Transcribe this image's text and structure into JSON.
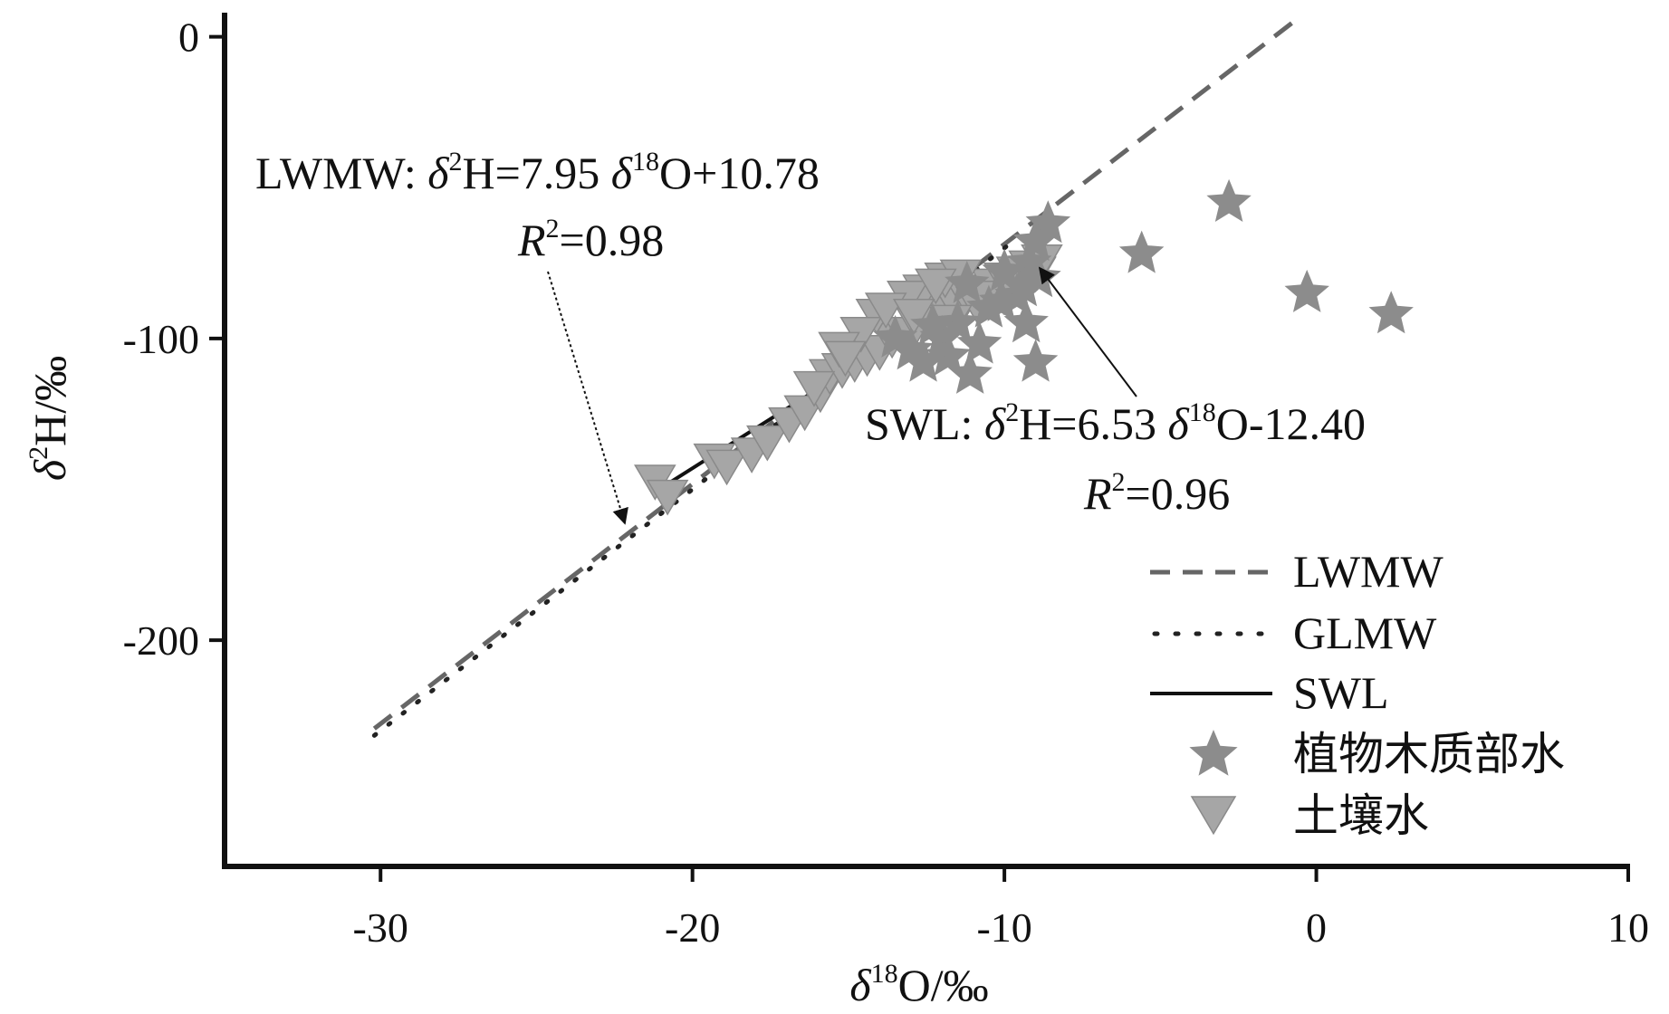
{
  "chart_data": {
    "type": "scatter",
    "title": "",
    "xlabel": {
      "delta": "δ",
      "sup": "18",
      "rest": "O/‰"
    },
    "ylabel": {
      "delta": "δ",
      "sup": "2",
      "rest": "H/‰"
    },
    "xlim": [
      -35,
      10
    ],
    "ylim": [
      -275,
      8
    ],
    "xticks": [
      -30,
      -20,
      -10,
      0,
      10
    ],
    "yticks": [
      0,
      -100,
      -200
    ],
    "xtick_labels": [
      "-30",
      "-20",
      "-10",
      "0",
      "10"
    ],
    "ytick_labels": [
      "0",
      "-100",
      "-200"
    ],
    "grid": false,
    "legend_position": "bottom-right",
    "colors": {
      "lwmw": "#666666",
      "glmw": "#222222",
      "swl": "#111111",
      "stem_water": "#8c8c8c",
      "soil_water": "#a6a6a6"
    },
    "lines": [
      {
        "name": "LWMW",
        "style": "dashed",
        "slope": 7.95,
        "intercept": 10.78,
        "x_range": [
          -30.2,
          -0.6
        ]
      },
      {
        "name": "GLMW",
        "style": "dotted",
        "slope": 8,
        "intercept": 10,
        "x_range": [
          -30.2,
          -9.8
        ]
      },
      {
        "name": "SWL",
        "style": "solid",
        "slope": 6.53,
        "intercept": -12.4,
        "x_range": [
          -21,
          -8.7
        ]
      }
    ],
    "series": [
      {
        "name": "植物木质部水",
        "marker": "star",
        "points": [
          [
            -2.8,
            -55
          ],
          [
            -5.6,
            -72
          ],
          [
            -0.3,
            -85
          ],
          [
            2.4,
            -92
          ],
          [
            -8.6,
            -62
          ],
          [
            -9.0,
            -68
          ],
          [
            -9.2,
            -75
          ],
          [
            -8.9,
            -80
          ],
          [
            -9.6,
            -86
          ],
          [
            -10.1,
            -88
          ],
          [
            -9.3,
            -95
          ],
          [
            -10.5,
            -90
          ],
          [
            -11.2,
            -82
          ],
          [
            -11.5,
            -95
          ],
          [
            -12.0,
            -100
          ],
          [
            -10.8,
            -102
          ],
          [
            -11.8,
            -106
          ],
          [
            -12.3,
            -96
          ],
          [
            -13.0,
            -104
          ],
          [
            -12.6,
            -108
          ],
          [
            -11.1,
            -112
          ],
          [
            -9.0,
            -108
          ],
          [
            -13.5,
            -100
          ],
          [
            -10.0,
            -78
          ],
          [
            -9.4,
            -83
          ]
        ]
      },
      {
        "name": "土壤水",
        "marker": "triangle-down",
        "points": [
          [
            -21.2,
            -147
          ],
          [
            -20.8,
            -152
          ],
          [
            -19.3,
            -140
          ],
          [
            -18.9,
            -142
          ],
          [
            -18.1,
            -138
          ],
          [
            -17.6,
            -134
          ],
          [
            -16.9,
            -128
          ],
          [
            -16.4,
            -124
          ],
          [
            -15.9,
            -118
          ],
          [
            -15.6,
            -112
          ],
          [
            -15.2,
            -110
          ],
          [
            -14.8,
            -108
          ],
          [
            -14.4,
            -106
          ],
          [
            -14.0,
            -104
          ],
          [
            -13.6,
            -100
          ],
          [
            -13.2,
            -98
          ],
          [
            -12.8,
            -95
          ],
          [
            -12.4,
            -92
          ],
          [
            -12.0,
            -90
          ],
          [
            -11.6,
            -88
          ],
          [
            -11.2,
            -86
          ],
          [
            -10.8,
            -84
          ],
          [
            -10.4,
            -82
          ],
          [
            -10.0,
            -80
          ],
          [
            -9.6,
            -78
          ],
          [
            -9.2,
            -76
          ],
          [
            -12.6,
            -84
          ],
          [
            -11.9,
            -80
          ],
          [
            -11.4,
            -79
          ],
          [
            -13.1,
            -86
          ],
          [
            -14.1,
            -92
          ],
          [
            -14.6,
            -98
          ],
          [
            -15.3,
            -103
          ],
          [
            -12.2,
            -82
          ],
          [
            -10.9,
            -88
          ],
          [
            -9.8,
            -82
          ],
          [
            -9.0,
            -78
          ],
          [
            -8.8,
            -74
          ],
          [
            -13.8,
            -90
          ],
          [
            -12.9,
            -92
          ],
          [
            -15.1,
            -106
          ],
          [
            -16.1,
            -116
          ],
          [
            -10.6,
            -86
          ],
          [
            -11.7,
            -94
          ]
        ]
      }
    ],
    "annotations": [
      {
        "id": "lwmw-eq",
        "label": "LWMW: ",
        "delta": "δ",
        "sup1": "2",
        "eq1": "H=7.95 ",
        "delta2": "δ",
        "sup2": "18",
        "eq2": "O+10.78",
        "r2_symbol": "R",
        "r2_sup": "2",
        "r2_value": "=0.98"
      },
      {
        "id": "swl-eq",
        "label": "SWL: ",
        "delta": "δ",
        "sup1": "2",
        "eq1": "H=6.53 ",
        "delta2": "δ",
        "sup2": "18",
        "eq2": "O-12.40",
        "r2_symbol": "R",
        "r2_sup": "2",
        "r2_value": "=0.96"
      }
    ],
    "legend": [
      "LWMW",
      "GLMW",
      "SWL",
      "植物木质部水",
      "土壤水"
    ]
  }
}
